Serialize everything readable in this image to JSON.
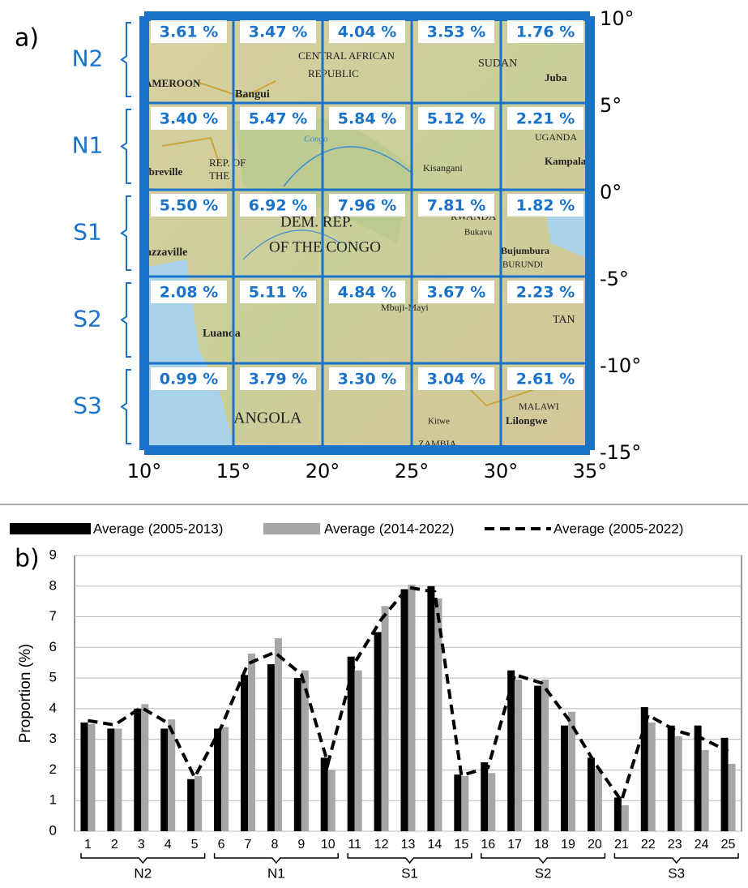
{
  "chart_data": [
    {
      "type": "grid_map",
      "panel_label": "a)",
      "row_labels": [
        "N2",
        "N1",
        "S1",
        "S2",
        "S3"
      ],
      "cells": [
        [
          3.61,
          3.47,
          4.04,
          3.53,
          1.76
        ],
        [
          3.4,
          5.47,
          5.84,
          5.12,
          2.21
        ],
        [
          5.5,
          6.92,
          7.96,
          7.81,
          1.82
        ],
        [
          2.08,
          5.11,
          4.84,
          3.67,
          2.23
        ],
        [
          0.99,
          3.79,
          3.3,
          3.04,
          2.61
        ]
      ],
      "value_labels": [
        [
          "3.61 %",
          "3.47 %",
          "4.04 %",
          "3.53 %",
          "1.76 %"
        ],
        [
          "3.40 %",
          "5.47 %",
          "5.84 %",
          "5.12 %",
          "2.21 %"
        ],
        [
          "5.50 %",
          "6.92 %",
          "7.96 %",
          "7.81 %",
          "1.82 %"
        ],
        [
          "2.08 %",
          "5.11 %",
          "4.84 %",
          "3.67 %",
          "2.23 %"
        ],
        [
          "0.99 %",
          "3.79 %",
          "3.30 %",
          "3.04 %",
          "2.61 %"
        ]
      ],
      "color": "#1a73c8",
      "xlim": [
        10,
        35
      ],
      "xticks": [
        {
          "value": 10,
          "label": "10°"
        },
        {
          "value": 15,
          "label": "15°"
        },
        {
          "value": 20,
          "label": "20°"
        },
        {
          "value": 25,
          "label": "25°"
        },
        {
          "value": 30,
          "label": "30°"
        },
        {
          "value": 35,
          "label": "35°"
        }
      ],
      "ylim": [
        -15,
        10
      ],
      "yticks": [
        {
          "value": 10,
          "label": "10°"
        },
        {
          "value": 5,
          "label": "5°"
        },
        {
          "value": 0,
          "label": "0°"
        },
        {
          "value": -5,
          "label": "-5°"
        },
        {
          "value": -10,
          "label": "-10°"
        },
        {
          "value": -15,
          "label": "-15°"
        }
      ],
      "map_labels": [
        "AMEROON",
        "Bangui",
        "CENTRAL AFRICAN",
        "REPUBLIC",
        "SUDAN",
        "Juba",
        "UGANDA",
        "Kampala",
        "Kisangani",
        "Congo",
        "REP. OF",
        "THE",
        "ibreville",
        "DEM. REP.",
        "OF THE CONGO",
        "RWANDA",
        "Bukavu",
        "Bujumbura",
        "BURUNDI",
        "azzaville",
        "Mbuji-Mayi",
        "TAN",
        "Luanda",
        "ANGOLA",
        "Kitwe",
        "ZAMBIA",
        "MALAWI",
        "Lilongwe"
      ]
    },
    {
      "type": "bar_line",
      "panel_label": "b)",
      "y_label": "Proportion (%)",
      "categories": [
        "1",
        "2",
        "3",
        "4",
        "5",
        "6",
        "7",
        "8",
        "9",
        "10",
        "11",
        "12",
        "13",
        "14",
        "15",
        "16",
        "17",
        "18",
        "19",
        "20",
        "21",
        "22",
        "23",
        "24",
        "25"
      ],
      "groups": [
        "N2",
        "N1",
        "S1",
        "S2",
        "S3"
      ],
      "series": [
        {
          "name": "Average (2005-2013)",
          "color": "#000000",
          "kind": "bar",
          "values": [
            3.55,
            3.35,
            4.0,
            3.35,
            1.7,
            3.35,
            5.1,
            5.45,
            5.0,
            2.4,
            5.7,
            6.5,
            7.9,
            8.0,
            1.85,
            2.25,
            5.25,
            4.75,
            3.45,
            2.4,
            1.1,
            4.05,
            3.45,
            3.45,
            3.05
          ]
        },
        {
          "name": "Average (2014-2022)",
          "color": "#a6a6a6",
          "kind": "bar",
          "values": [
            3.5,
            3.35,
            4.15,
            3.65,
            1.8,
            3.4,
            5.8,
            6.3,
            5.25,
            2.0,
            5.25,
            7.35,
            8.05,
            7.6,
            1.8,
            1.9,
            4.95,
            4.95,
            3.9,
            2.05,
            0.85,
            3.55,
            3.1,
            2.65,
            2.2
          ]
        },
        {
          "name": "Average (2005-2022)",
          "color": "#000000",
          "kind": "dashed_line",
          "values": [
            3.61,
            3.47,
            4.04,
            3.53,
            1.76,
            3.4,
            5.47,
            5.84,
            5.12,
            2.21,
            5.5,
            6.92,
            7.96,
            7.81,
            1.82,
            2.08,
            5.11,
            4.84,
            3.67,
            2.23,
            0.99,
            3.79,
            3.3,
            3.04,
            2.61
          ]
        }
      ],
      "ylim": [
        0,
        9
      ],
      "yticks": [
        0,
        1,
        2,
        3,
        4,
        5,
        6,
        7,
        8,
        9
      ],
      "grid": true
    }
  ]
}
